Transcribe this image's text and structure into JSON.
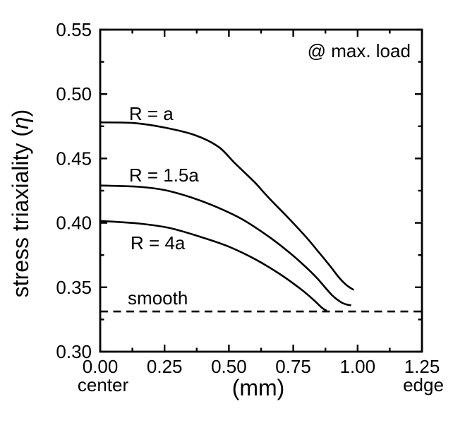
{
  "colors": {
    "ink": "#000000",
    "background": "#ffffff"
  },
  "chart_data": {
    "type": "line",
    "title": "",
    "annotation": "@ max. load",
    "annotation_pos": {
      "x": 1.206,
      "y": 0.5286,
      "anchor": "end"
    },
    "xlabel": "(mm)",
    "x_start_label": "center",
    "x_end_label": "edge",
    "ylabel_prefix": "stress triaxiality (",
    "ylabel_symbol": "η",
    "ylabel_suffix": ")",
    "xlim": [
      0,
      1.25
    ],
    "ylim": [
      0.3,
      0.55
    ],
    "xticks": [
      0.0,
      0.25,
      0.5,
      0.75,
      1.0,
      1.25
    ],
    "yticks": [
      0.3,
      0.35,
      0.4,
      0.45,
      0.5,
      0.55
    ],
    "x_minor_ticks": [
      0.125,
      0.375,
      0.625,
      0.875,
      1.125
    ],
    "y_minor_ticks": [
      0.325,
      0.375,
      0.425,
      0.475,
      0.525
    ],
    "grid": false,
    "legend_position": "inline-curve-labels",
    "series": [
      {
        "name": "R = a",
        "line_style": "solid",
        "label": {
          "text": "R = a",
          "x": 0.112,
          "y": 0.4798,
          "anchor": "start"
        },
        "points": [
          [
            0.0,
            0.478
          ],
          [
            0.13,
            0.4775
          ],
          [
            0.25,
            0.474
          ],
          [
            0.37,
            0.468
          ],
          [
            0.46,
            0.459
          ],
          [
            0.52,
            0.447
          ],
          [
            0.6,
            0.4315
          ],
          [
            0.65,
            0.4205
          ],
          [
            0.735,
            0.403
          ],
          [
            0.8,
            0.389
          ],
          [
            0.85,
            0.377
          ],
          [
            0.895,
            0.366
          ],
          [
            0.93,
            0.357
          ],
          [
            0.955,
            0.352
          ],
          [
            0.972,
            0.3495
          ],
          [
            0.985,
            0.348
          ]
        ]
      },
      {
        "name": "R = 1.5a",
        "line_style": "solid",
        "label": {
          "text": "R = 1.5a",
          "x": 0.112,
          "y": 0.4321,
          "anchor": "start"
        },
        "points": [
          [
            0.0,
            0.429
          ],
          [
            0.15,
            0.428
          ],
          [
            0.25,
            0.4255
          ],
          [
            0.35,
            0.42
          ],
          [
            0.45,
            0.4125
          ],
          [
            0.55,
            0.403
          ],
          [
            0.65,
            0.39
          ],
          [
            0.735,
            0.377
          ],
          [
            0.8,
            0.3655
          ],
          [
            0.845,
            0.3565
          ],
          [
            0.9,
            0.344
          ],
          [
            0.935,
            0.3385
          ],
          [
            0.96,
            0.3365
          ],
          [
            0.975,
            0.336
          ]
        ]
      },
      {
        "name": "R = 4a",
        "line_style": "solid",
        "label": {
          "text": "R = 4a",
          "x": 0.118,
          "y": 0.3795,
          "anchor": "start"
        },
        "points": [
          [
            0.0,
            0.4015
          ],
          [
            0.15,
            0.3995
          ],
          [
            0.27,
            0.396
          ],
          [
            0.4,
            0.3885
          ],
          [
            0.5,
            0.3815
          ],
          [
            0.6,
            0.372
          ],
          [
            0.7,
            0.36
          ],
          [
            0.78,
            0.3485
          ],
          [
            0.83,
            0.34
          ],
          [
            0.862,
            0.334
          ],
          [
            0.88,
            0.3318
          ]
        ]
      },
      {
        "name": "smooth",
        "line_style": "dashed",
        "label": {
          "text": "smooth",
          "x": 0.107,
          "y": 0.3367,
          "anchor": "start"
        },
        "points": [
          [
            0.0,
            0.3312
          ],
          [
            1.25,
            0.3312
          ]
        ]
      }
    ]
  }
}
